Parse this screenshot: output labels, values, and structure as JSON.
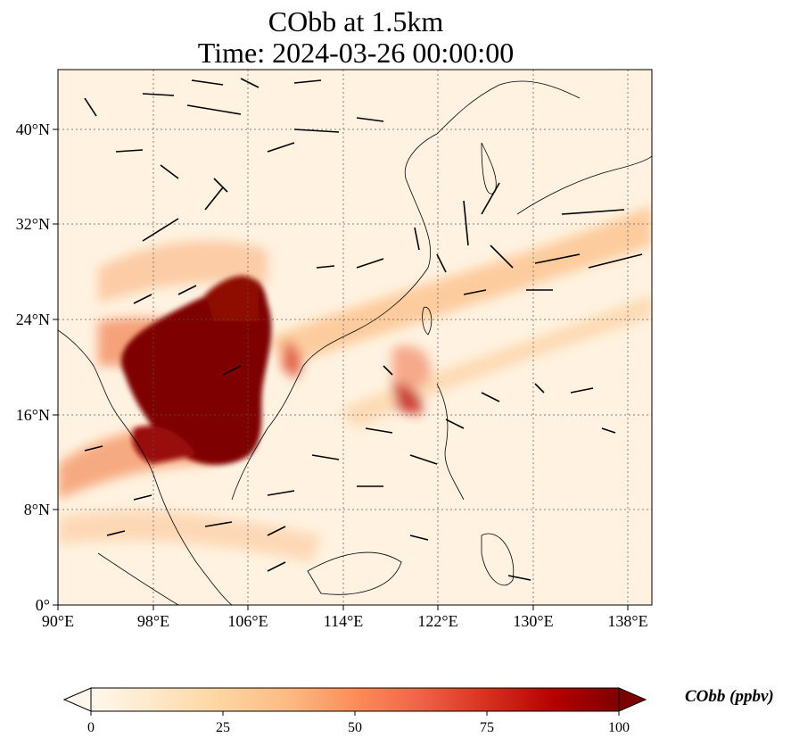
{
  "title": {
    "line1": "CObb at 1.5km",
    "line2": "Time: 2024-03-26 00:00:00"
  },
  "map": {
    "lon_range": [
      90,
      140
    ],
    "lat_range": [
      0,
      45
    ],
    "lon_ticks": [
      "90°E",
      "98°E",
      "106°E",
      "114°E",
      "122°E",
      "130°E",
      "138°E"
    ],
    "lat_ticks": [
      "0°",
      "8°N",
      "16°N",
      "24°N",
      "32°N",
      "40°N"
    ],
    "gridlines": true,
    "colormap": "OrRd"
  },
  "colorbar": {
    "label": "CObb (ppbv)",
    "ticks": [
      "0",
      "25",
      "50",
      "75",
      "100"
    ],
    "range": [
      0,
      100
    ],
    "extend": "both",
    "colors": [
      "#fff7ec",
      "#fee8c8",
      "#fdd49e",
      "#fdbb84",
      "#fc8d59",
      "#ef6548",
      "#d7301f",
      "#b30000",
      "#7f0000"
    ]
  }
}
